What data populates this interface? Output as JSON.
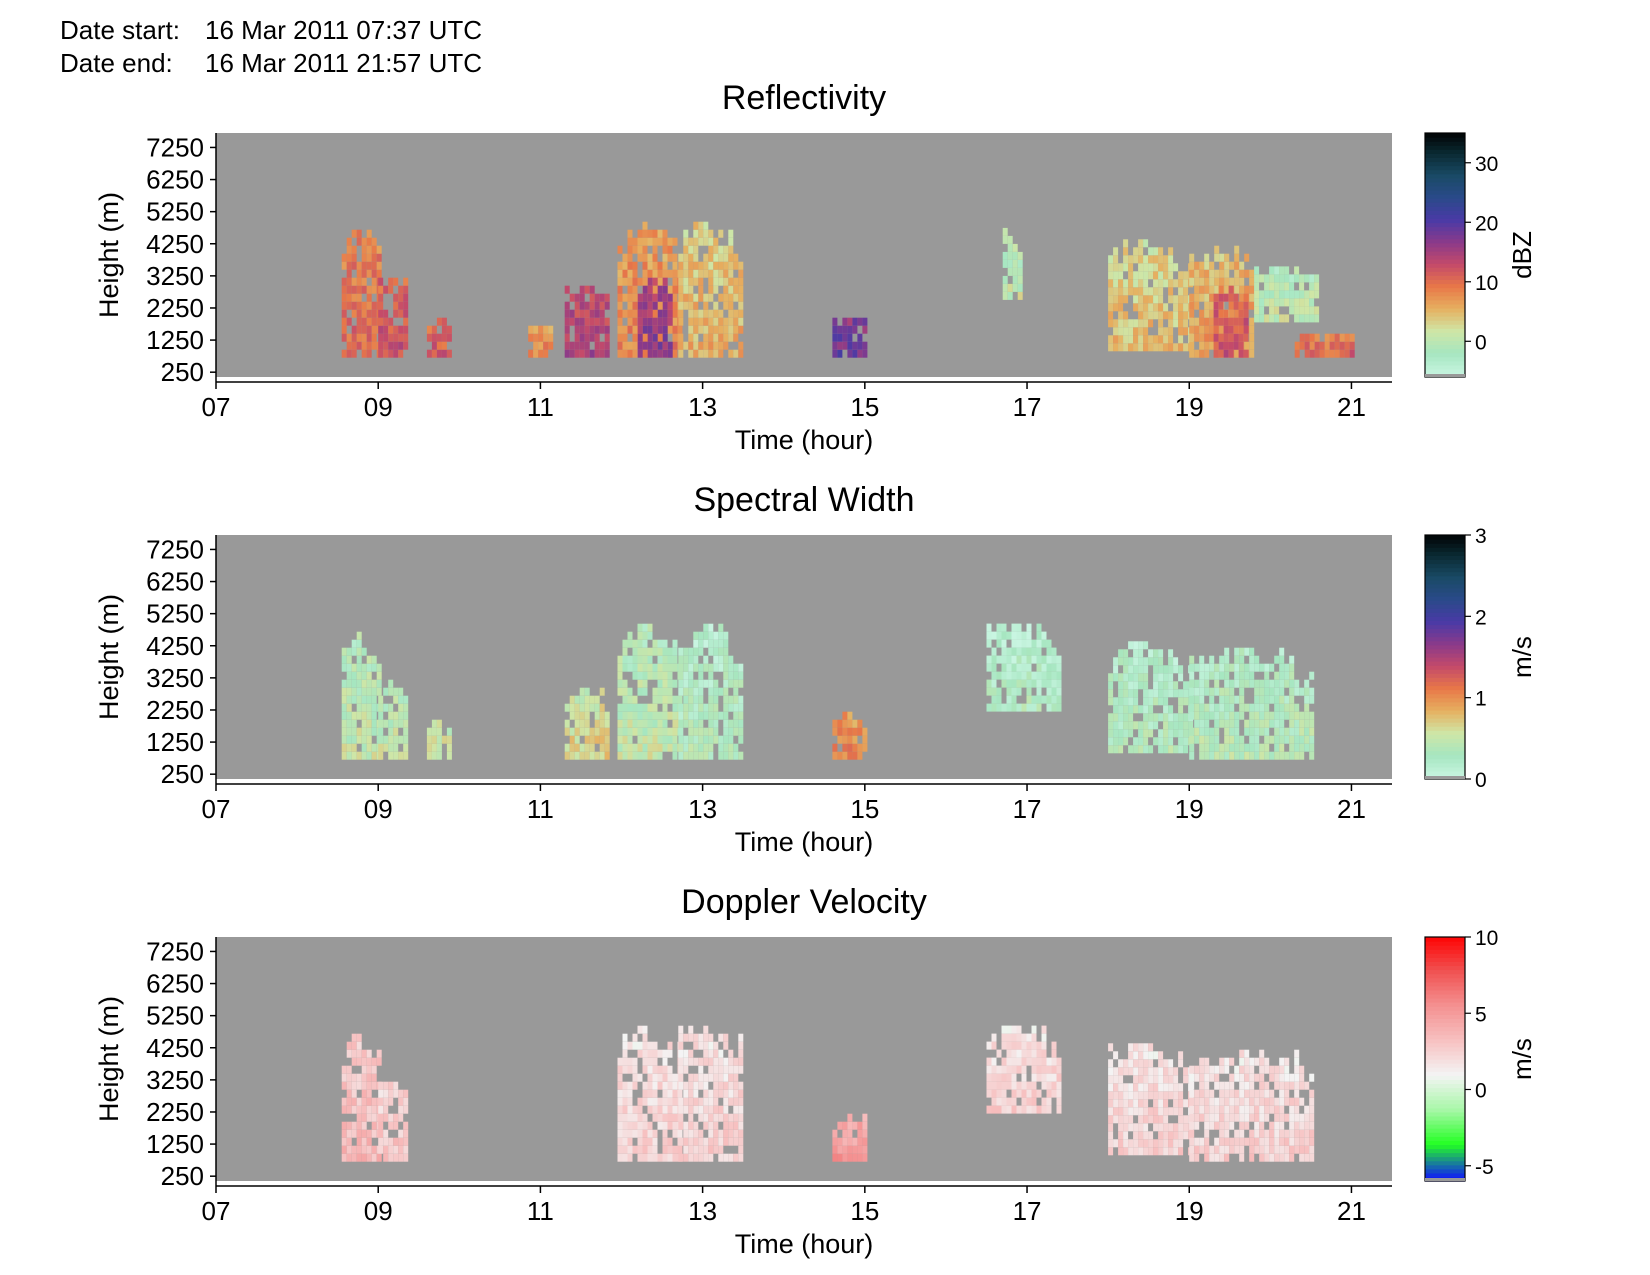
{
  "header": {
    "start_label": "Date start:",
    "start_value": "16 Mar 2011 07:37 UTC",
    "end_label": "Date end:",
    "end_value": "16 Mar 2011 21:57 UTC"
  },
  "colors": {
    "background": "#999999",
    "reflectivity_scale": [
      "#c8f5e1",
      "#a6e6c0",
      "#cfe6a6",
      "#e6b060",
      "#e87848",
      "#c44a6a",
      "#8a3a8a",
      "#4a3aa6",
      "#2a4a8a",
      "#1a4a66",
      "#0a2a33",
      "#000000"
    ],
    "width_scale": [
      "#c8f5e1",
      "#a6e6c0",
      "#cfe6a6",
      "#e6b060",
      "#e87848",
      "#c44a6a",
      "#8a3a8a",
      "#4a3aa6",
      "#2a4a8a",
      "#1a4a66",
      "#0a2a33",
      "#000000"
    ],
    "velocity_scale": [
      "#1010ff",
      "#22ff22",
      "#a8f7a8",
      "#f4f4f4",
      "#f7c0c0",
      "#f49090",
      "#f05050",
      "#ff0000"
    ]
  },
  "chart_data": [
    {
      "type": "heatmap",
      "title": "Reflectivity",
      "xlabel": "Time (hour)",
      "ylabel": "Height (m)",
      "xlim": [
        7,
        21.5
      ],
      "ylim": [
        100,
        7700
      ],
      "x_ticks": [
        "07",
        "09",
        "11",
        "13",
        "15",
        "17",
        "19",
        "21"
      ],
      "y_ticks": [
        "250",
        "1250",
        "2250",
        "3250",
        "4250",
        "5250",
        "6250",
        "7250"
      ],
      "colorbar": {
        "label": "dBZ",
        "min": -6,
        "max": 35,
        "ticks": [
          "0",
          "10",
          "20",
          "30"
        ]
      },
      "blobs": [
        {
          "x": [
            8.55,
            9.0
          ],
          "y": [
            700,
            4600
          ],
          "value": 8
        },
        {
          "x": [
            9.0,
            9.35
          ],
          "y": [
            700,
            3200
          ],
          "value": 10
        },
        {
          "x": [
            9.6,
            9.9
          ],
          "y": [
            700,
            1800
          ],
          "value": 9
        },
        {
          "x": [
            10.85,
            11.1
          ],
          "y": [
            700,
            1600
          ],
          "value": 6
        },
        {
          "x": [
            11.3,
            11.8
          ],
          "y": [
            700,
            2800
          ],
          "value": 12
        },
        {
          "x": [
            11.95,
            12.7
          ],
          "y": [
            700,
            4800
          ],
          "value": 6
        },
        {
          "x": [
            12.2,
            12.6
          ],
          "y": [
            700,
            3000
          ],
          "value": 14
        },
        {
          "x": [
            12.7,
            13.5
          ],
          "y": [
            700,
            4800
          ],
          "value": 3
        },
        {
          "x": [
            14.6,
            15.0
          ],
          "y": [
            700,
            2000
          ],
          "value": 16
        },
        {
          "x": [
            16.9,
            16.7
          ],
          "y": [
            2500,
            4600
          ],
          "value": -2
        },
        {
          "x": [
            18.0,
            19.0
          ],
          "y": [
            900,
            4300
          ],
          "value": 2
        },
        {
          "x": [
            19.0,
            19.8
          ],
          "y": [
            700,
            4000
          ],
          "value": 4
        },
        {
          "x": [
            19.3,
            19.7
          ],
          "y": [
            700,
            2800
          ],
          "value": 10
        },
        {
          "x": [
            19.8,
            20.6
          ],
          "y": [
            1800,
            3400
          ],
          "value": -2
        },
        {
          "x": [
            20.3,
            21.0
          ],
          "y": [
            700,
            1400
          ],
          "value": 8
        }
      ]
    },
    {
      "type": "heatmap",
      "title": "Spectral Width",
      "xlabel": "Time (hour)",
      "ylabel": "Height (m)",
      "xlim": [
        7,
        21.5
      ],
      "ylim": [
        100,
        7700
      ],
      "x_ticks": [
        "07",
        "09",
        "11",
        "13",
        "15",
        "17",
        "19",
        "21"
      ],
      "y_ticks": [
        "250",
        "1250",
        "2250",
        "3250",
        "4250",
        "5250",
        "6250",
        "7250"
      ],
      "colorbar": {
        "label": "m/s",
        "min": 0,
        "max": 3,
        "ticks": [
          "0",
          "1",
          "2",
          "3"
        ]
      },
      "blobs": [
        {
          "x": [
            8.55,
            9.0
          ],
          "y": [
            700,
            4600
          ],
          "value": 0.3
        },
        {
          "x": [
            9.0,
            9.35
          ],
          "y": [
            700,
            3200
          ],
          "value": 0.3
        },
        {
          "x": [
            9.6,
            9.9
          ],
          "y": [
            700,
            1800
          ],
          "value": 0.4
        },
        {
          "x": [
            11.3,
            11.8
          ],
          "y": [
            700,
            2800
          ],
          "value": 0.5
        },
        {
          "x": [
            11.95,
            12.7
          ],
          "y": [
            700,
            4800
          ],
          "value": 0.3
        },
        {
          "x": [
            12.7,
            13.5
          ],
          "y": [
            700,
            4800
          ],
          "value": 0.15
        },
        {
          "x": [
            14.6,
            15.0
          ],
          "y": [
            700,
            2000
          ],
          "value": 0.9
        },
        {
          "x": [
            16.5,
            17.4
          ],
          "y": [
            2200,
            4800
          ],
          "value": 0.1
        },
        {
          "x": [
            18.0,
            19.0
          ],
          "y": [
            900,
            4300
          ],
          "value": 0.15
        },
        {
          "x": [
            19.0,
            20.5
          ],
          "y": [
            700,
            4000
          ],
          "value": 0.2
        }
      ]
    },
    {
      "type": "heatmap",
      "title": "Doppler Velocity",
      "xlabel": "Time (hour)",
      "ylabel": "Height (m)",
      "xlim": [
        7,
        21.5
      ],
      "ylim": [
        100,
        7700
      ],
      "x_ticks": [
        "07",
        "09",
        "11",
        "13",
        "15",
        "17",
        "19",
        "21"
      ],
      "y_ticks": [
        "250",
        "1250",
        "2250",
        "3250",
        "4250",
        "5250",
        "6250",
        "7250"
      ],
      "colorbar": {
        "label": "m/s",
        "min": -6,
        "max": 10,
        "ticks": [
          "-5",
          "0",
          "5",
          "10"
        ]
      },
      "blobs": [
        {
          "x": [
            8.55,
            9.0
          ],
          "y": [
            700,
            4600
          ],
          "value": 2.5
        },
        {
          "x": [
            9.0,
            9.35
          ],
          "y": [
            700,
            3200
          ],
          "value": 2
        },
        {
          "x": [
            11.95,
            12.7
          ],
          "y": [
            700,
            4800
          ],
          "value": 1.5
        },
        {
          "x": [
            12.7,
            13.5
          ],
          "y": [
            700,
            4800
          ],
          "value": 1.5
        },
        {
          "x": [
            14.6,
            15.0
          ],
          "y": [
            700,
            2000
          ],
          "value": 4
        },
        {
          "x": [
            16.5,
            17.4
          ],
          "y": [
            2200,
            4800
          ],
          "value": 1.5
        },
        {
          "x": [
            18.0,
            19.0
          ],
          "y": [
            900,
            4300
          ],
          "value": 1.5
        },
        {
          "x": [
            19.0,
            20.5
          ],
          "y": [
            700,
            4000
          ],
          "value": 1.5
        }
      ]
    }
  ]
}
